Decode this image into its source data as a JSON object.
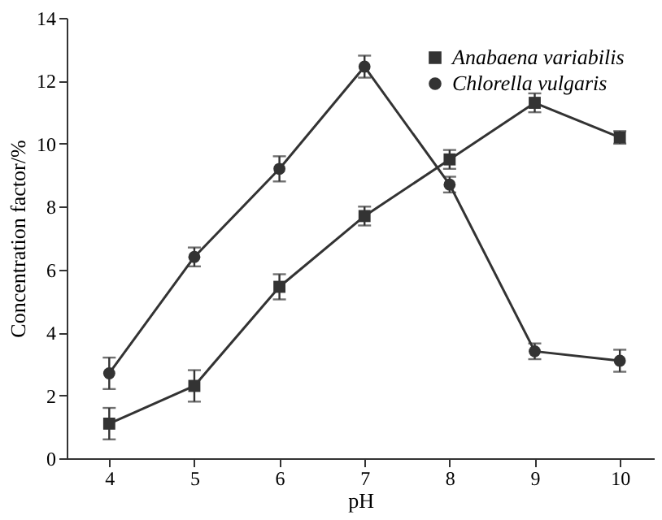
{
  "chart_data": {
    "type": "line",
    "xlabel": "pH",
    "ylabel": "Concentration factor/%",
    "x": [
      4,
      5,
      6,
      7,
      8,
      9,
      10
    ],
    "xlim": [
      3.5,
      10.4
    ],
    "xticks": [
      4,
      5,
      6,
      7,
      8,
      9,
      10
    ],
    "ylim": [
      0,
      14
    ],
    "yticks": [
      0,
      2,
      4,
      6,
      8,
      10,
      12,
      14
    ],
    "grid": false,
    "legend": "top right",
    "line_style": "solid",
    "series": [
      {
        "name": "Anabaena variabilis",
        "color": "#333333",
        "marker": "square",
        "values": [
          1.1,
          2.3,
          5.45,
          7.7,
          9.5,
          11.3,
          10.2
        ],
        "errors": [
          0.5,
          0.5,
          0.4,
          0.3,
          0.3,
          0.3,
          0.2
        ]
      },
      {
        "name": "Chlorella vulgaris",
        "color": "#333333",
        "marker": "circle",
        "values": [
          2.7,
          6.4,
          9.2,
          12.45,
          8.7,
          3.4,
          3.1
        ],
        "errors": [
          0.5,
          0.3,
          0.4,
          0.35,
          0.25,
          0.25,
          0.35
        ]
      }
    ]
  }
}
